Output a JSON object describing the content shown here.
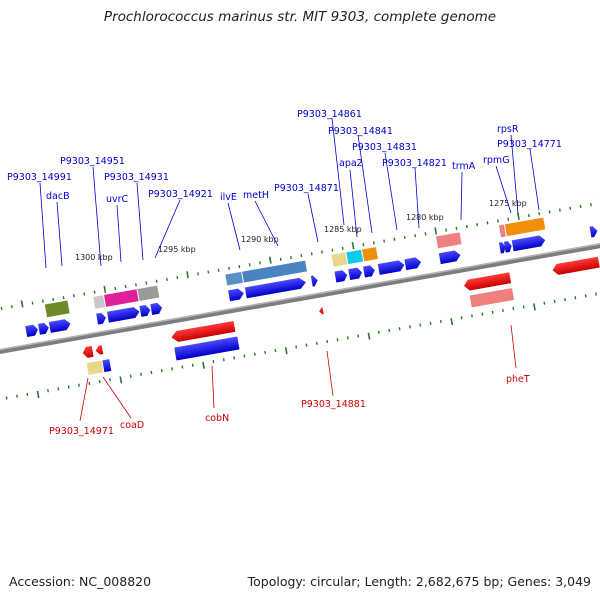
{
  "title": "Prochlorococcus marinus str. MIT 9303, complete genome",
  "footer": {
    "accession": "Accession: NC_008820",
    "summary": "Topology: circular; Length: 2,682,675 bp; Genes: 3,049"
  },
  "colors": {
    "label_forward": "#0000cc",
    "label_reverse": "#cc0000",
    "forward_arrow": "#0000ee",
    "reverse_arrow": "#ee0000",
    "tick": "#2a7a2a",
    "backbone": "#7a7a7a"
  },
  "scale_labels": [
    "1300 kbp",
    "1295 kbp",
    "1290 kbp",
    "1285 kbp",
    "1280 kbp",
    "1275 kbp"
  ],
  "forward_labels": [
    "P9303_14991",
    "dacB",
    "P9303_14951",
    "uvrC",
    "P9303_14931",
    "P9303_14921",
    "ilvE",
    "metH",
    "P9303_14871",
    "P9303_14861",
    "P9303_14841",
    "apa2",
    "P9303_14831",
    "P9303_14821",
    "trmA",
    "rpsR",
    "rpmG",
    "P9303_14771"
  ],
  "reverse_labels": [
    "P9303_14971",
    "coaD",
    "cobN",
    "P9303_14881",
    "pheT"
  ]
}
